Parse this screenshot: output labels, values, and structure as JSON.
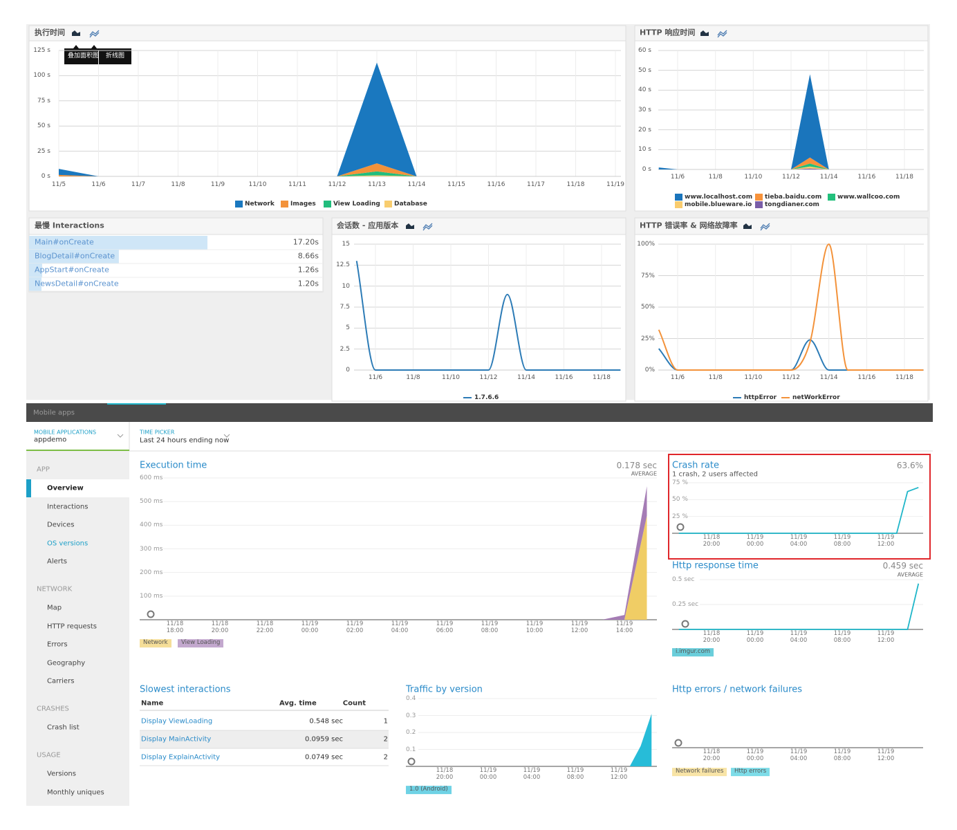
{
  "top": {
    "tooltip": [
      "叠加面积图",
      "折线图"
    ],
    "slowest": {
      "title": "最慢 Interactions",
      "rows": [
        {
          "name": "Main#onCreate",
          "time": 17.2,
          "time_label": "17.20s"
        },
        {
          "name": "BlogDetail#onCreate",
          "time": 8.66,
          "time_label": "8.66s"
        },
        {
          "name": "AppStart#onCreate",
          "time": 1.26,
          "time_label": "1.26s"
        },
        {
          "name": "NewsDetail#onCreate",
          "time": 1.2,
          "time_label": "1.20s"
        }
      ]
    }
  },
  "app": {
    "header": "Mobile apps",
    "app_picker": {
      "label": "MOBILE APPLICATIONS",
      "value": "appdemo"
    },
    "time_picker": {
      "label": "TIME PICKER",
      "value": "Last 24 hours ending now"
    },
    "nav": [
      {
        "section": "APP",
        "items": [
          {
            "label": "Overview",
            "selected": true
          },
          {
            "label": "Interactions"
          },
          {
            "label": "Devices"
          },
          {
            "label": "OS versions",
            "active": true
          },
          {
            "label": "Alerts"
          }
        ]
      },
      {
        "section": "NETWORK",
        "items": [
          {
            "label": "Map"
          },
          {
            "label": "HTTP requests"
          },
          {
            "label": "Errors"
          },
          {
            "label": "Geography"
          },
          {
            "label": "Carriers"
          }
        ]
      },
      {
        "section": "CRASHES",
        "items": [
          {
            "label": "Crash list"
          }
        ]
      },
      {
        "section": "USAGE",
        "items": [
          {
            "label": "Versions"
          },
          {
            "label": "Monthly uniques"
          }
        ]
      }
    ],
    "slowest": {
      "title": "Slowest interactions",
      "columns": [
        "Name",
        "Avg. time",
        "Count"
      ],
      "rows": [
        [
          "Display ViewLoading",
          "0.548 sec",
          1
        ],
        [
          "Display MainActivity",
          "0.0959 sec",
          2
        ],
        [
          "Display ExplainActivity",
          "0.0749 sec",
          2
        ]
      ]
    }
  },
  "chart_data": [
    {
      "type": "area",
      "title": "执行时间",
      "categories": [
        "11/5",
        "11/6",
        "11/7",
        "11/8",
        "11/9",
        "11/10",
        "11/11",
        "11/12",
        "11/13",
        "11/14",
        "11/15",
        "11/16",
        "11/17",
        "11/18",
        "11/19"
      ],
      "series": [
        {
          "name": "Network",
          "color": "#1a78bf",
          "values": [
            6,
            0,
            0,
            0,
            0,
            0,
            0,
            0,
            100,
            0,
            0,
            0,
            0,
            0,
            0
          ]
        },
        {
          "name": "Images",
          "color": "#f3923a",
          "values": [
            1.5,
            0,
            0,
            0,
            0,
            0,
            0,
            0,
            8,
            0,
            0,
            0,
            0,
            0,
            0
          ]
        },
        {
          "name": "View Loading",
          "color": "#22bd7d",
          "values": [
            0,
            0,
            0,
            0,
            0,
            0,
            0,
            0,
            4,
            0,
            0,
            0,
            0,
            0,
            0
          ]
        },
        {
          "name": "Database",
          "color": "#f8cd6f",
          "values": [
            0,
            0,
            0,
            0,
            0,
            0,
            0,
            0,
            1,
            0,
            0,
            0,
            0,
            0,
            0
          ]
        }
      ],
      "ylim": [
        0,
        125
      ],
      "yticks": [
        {
          "value": 0,
          "label": "0 s"
        },
        {
          "value": 25,
          "label": "25 s"
        },
        {
          "value": 50,
          "label": "50 s"
        },
        {
          "value": 75,
          "label": "75 s"
        },
        {
          "value": 100,
          "label": "100 s"
        },
        {
          "value": 125,
          "label": "125 s"
        }
      ],
      "grid": true
    },
    {
      "type": "area",
      "title": "HTTP 响应时间",
      "categories": [
        null,
        "11/6",
        null,
        "11/8",
        null,
        "11/10",
        null,
        "11/12",
        null,
        "11/14",
        null,
        "11/16",
        null,
        "11/18",
        null
      ],
      "series": [
        {
          "name": "www.localhost.com",
          "color": "#1a75bc",
          "values": [
            1,
            0,
            0,
            0,
            0,
            0,
            0,
            0,
            42,
            0,
            0,
            0,
            0,
            0,
            0
          ]
        },
        {
          "name": "tieba.baidu.com",
          "color": "#f7923a",
          "values": [
            0,
            0,
            0,
            0,
            0,
            0,
            0,
            0,
            3,
            0,
            0,
            0,
            0,
            0,
            0
          ]
        },
        {
          "name": "www.wallcoo.com",
          "color": "#22c07c",
          "values": [
            0,
            0,
            0,
            0,
            0,
            0,
            0,
            0,
            1.5,
            0,
            0,
            0,
            0,
            0,
            0
          ]
        },
        {
          "name": "mobile.blueware.io",
          "color": "#f9cc6e",
          "values": [
            0,
            0,
            0,
            0,
            0,
            0,
            0,
            0,
            1,
            0,
            0,
            0,
            0,
            0,
            0
          ]
        },
        {
          "name": "tongdianer.com",
          "color": "#7a5ea8",
          "values": [
            0,
            0,
            0,
            0,
            0,
            0,
            0,
            0,
            0.5,
            0,
            0,
            0,
            0,
            0,
            0
          ]
        }
      ],
      "ylim": [
        0,
        60
      ],
      "yticks": [
        {
          "value": 0,
          "label": "0 s"
        },
        {
          "value": 10,
          "label": "10 s"
        },
        {
          "value": 20,
          "label": "20 s"
        },
        {
          "value": 30,
          "label": "30 s"
        },
        {
          "value": 40,
          "label": "40 s"
        },
        {
          "value": 50,
          "label": "50 s"
        },
        {
          "value": 60,
          "label": "60 s"
        }
      ],
      "grid": true
    },
    {
      "type": "line",
      "title": "会话数 - 应用版本",
      "categories": [
        null,
        "11/6",
        null,
        "11/8",
        null,
        "11/10",
        null,
        "11/12",
        null,
        "11/14",
        null,
        "11/16",
        null,
        "11/18",
        null
      ],
      "series": [
        {
          "name": "1.7.6.6",
          "color": "#2c7bb6",
          "values": [
            13,
            0,
            0,
            0,
            0,
            0,
            0,
            0,
            9,
            0,
            0,
            0,
            0,
            0,
            0
          ]
        }
      ],
      "ylim": [
        0,
        15
      ],
      "yticks": [
        0,
        2.5,
        5,
        7.5,
        10,
        12.5,
        15
      ],
      "grid": true
    },
    {
      "type": "line",
      "title": "HTTP 错误率 & 网络故障率",
      "categories": [
        null,
        "11/6",
        null,
        "11/8",
        null,
        "11/10",
        null,
        "11/12",
        null,
        "11/14",
        null,
        "11/16",
        null,
        "11/18",
        null
      ],
      "series": [
        {
          "name": "httpError",
          "color": "#2c7bb6",
          "values": [
            17,
            0,
            0,
            0,
            0,
            0,
            0,
            0,
            24,
            0,
            0,
            0,
            0,
            0,
            0
          ]
        },
        {
          "name": "netWorkError",
          "color": "#f3923a",
          "values": [
            32,
            0,
            0,
            0,
            0,
            0,
            0,
            0,
            22,
            100,
            0,
            0,
            0,
            0,
            0
          ]
        }
      ],
      "ylim": [
        0,
        100
      ],
      "yticks": [
        {
          "value": 0,
          "label": "0%"
        },
        {
          "value": 25,
          "label": "25%"
        },
        {
          "value": 50,
          "label": "50%"
        },
        {
          "value": 75,
          "label": "75%"
        },
        {
          "value": 100,
          "label": "100%"
        }
      ],
      "grid": true
    },
    {
      "type": "area",
      "title": "Execution time",
      "summary": "0.178 sec",
      "summary_caption": "AVERAGE",
      "categories": [
        null,
        "11/18 18:00",
        null,
        "11/18 20:00",
        null,
        "11/18 22:00",
        null,
        "11/19 00:00",
        null,
        "11/19 02:00",
        null,
        "11/19 04:00",
        null,
        "11/19 06:00",
        null,
        "11/19 08:00",
        null,
        "11/19 10:00",
        null,
        "11/19 12:00",
        null,
        "11/19 14:00",
        null
      ],
      "series": [
        {
          "name": "Network",
          "color": "#f0cd65",
          "values": [
            0,
            0,
            0,
            0,
            0,
            0,
            0,
            0,
            0,
            0,
            0,
            0,
            0,
            0,
            0,
            0,
            0,
            0,
            0,
            0,
            0,
            0,
            440
          ]
        },
        {
          "name": "View Loading",
          "color": "#a57cb5",
          "values": [
            0,
            0,
            0,
            0,
            0,
            0,
            0,
            0,
            0,
            0,
            0,
            0,
            0,
            0,
            0,
            0,
            0,
            0,
            0,
            0,
            0,
            20,
            125
          ]
        }
      ],
      "ylim": [
        0,
        600
      ],
      "yticks": [
        {
          "value": 100,
          "label": "100 ms"
        },
        {
          "value": 200,
          "label": "200 ms"
        },
        {
          "value": 300,
          "label": "300 ms"
        },
        {
          "value": 400,
          "label": "400 ms"
        },
        {
          "value": 500,
          "label": "500 ms"
        },
        {
          "value": 600,
          "label": "600 ms"
        }
      ],
      "grid": true
    },
    {
      "type": "line",
      "title": "Crash rate",
      "summary": "63.6%",
      "subtitle": "1 crash, 2 users affected",
      "categories": [
        null,
        null,
        null,
        "11/18 20:00",
        null,
        null,
        null,
        "11/19 00:00",
        null,
        null,
        null,
        "11/19 04:00",
        null,
        null,
        null,
        "11/19 08:00",
        null,
        null,
        null,
        "11/19 12:00",
        null,
        null,
        null
      ],
      "values": [
        0,
        0,
        0,
        0,
        0,
        0,
        0,
        0,
        0,
        0,
        0,
        0,
        0,
        0,
        0,
        0,
        0,
        0,
        0,
        0,
        0,
        62,
        68
      ],
      "color": "#1fb6c9",
      "ylim": [
        0,
        75
      ],
      "yticks": [
        {
          "value": 25,
          "label": "25 %"
        },
        {
          "value": 50,
          "label": "50 %"
        },
        {
          "value": 75,
          "label": "75 %"
        }
      ],
      "grid": true
    },
    {
      "type": "line",
      "title": "Http response time",
      "summary": "0.459 sec",
      "summary_caption": "AVERAGE",
      "categories": [
        null,
        null,
        null,
        "11/18 20:00",
        null,
        null,
        null,
        "11/19 00:00",
        null,
        null,
        null,
        "11/19 04:00",
        null,
        null,
        null,
        "11/19 08:00",
        null,
        null,
        null,
        "11/19 12:00",
        null,
        null,
        null
      ],
      "series": [
        {
          "name": "i.imgur.com",
          "color": "#1fb6c9",
          "values": [
            0,
            0,
            0,
            0,
            0,
            0,
            0,
            0,
            0,
            0,
            0,
            0,
            0,
            0,
            0,
            0,
            0,
            0,
            0,
            0,
            0,
            0,
            0.46
          ]
        }
      ],
      "ylim": [
        0,
        0.5
      ],
      "yticks": [
        {
          "value": 0.25,
          "label": "0.25 sec"
        },
        {
          "value": 0.5,
          "label": "0.5 sec"
        }
      ],
      "grid": true
    },
    {
      "type": "area",
      "title": "Traffic by version",
      "categories": [
        null,
        null,
        null,
        "11/18 20:00",
        null,
        null,
        null,
        "11/19 00:00",
        null,
        null,
        null,
        "11/19 04:00",
        null,
        null,
        null,
        "11/19 08:00",
        null,
        null,
        null,
        "11/19 12:00",
        null,
        null,
        null
      ],
      "series": [
        {
          "name": "1.0 (Android)",
          "color": "#27bcd8",
          "values": [
            0,
            0,
            0,
            0,
            0,
            0,
            0,
            0,
            0,
            0,
            0,
            0,
            0,
            0,
            0,
            0,
            0,
            0,
            0,
            0,
            0,
            0.12,
            0.31
          ]
        }
      ],
      "ylim": [
        0,
        0.4
      ],
      "yticks": [
        0.1,
        0.2,
        0.3,
        0.4
      ],
      "grid": true
    },
    {
      "type": "line",
      "title": "Http errors / network failures",
      "categories": [
        null,
        null,
        null,
        "11/18 20:00",
        null,
        null,
        null,
        "11/19 00:00",
        null,
        null,
        null,
        "11/19 04:00",
        null,
        null,
        null,
        "11/19 08:00",
        null,
        null,
        null,
        "11/19 12:00",
        null,
        null,
        null
      ],
      "series": [
        {
          "name": "Network failures",
          "color": "#f5d77a"
        },
        {
          "name": "Http errors",
          "color": "#3ccbdc"
        }
      ]
    }
  ]
}
